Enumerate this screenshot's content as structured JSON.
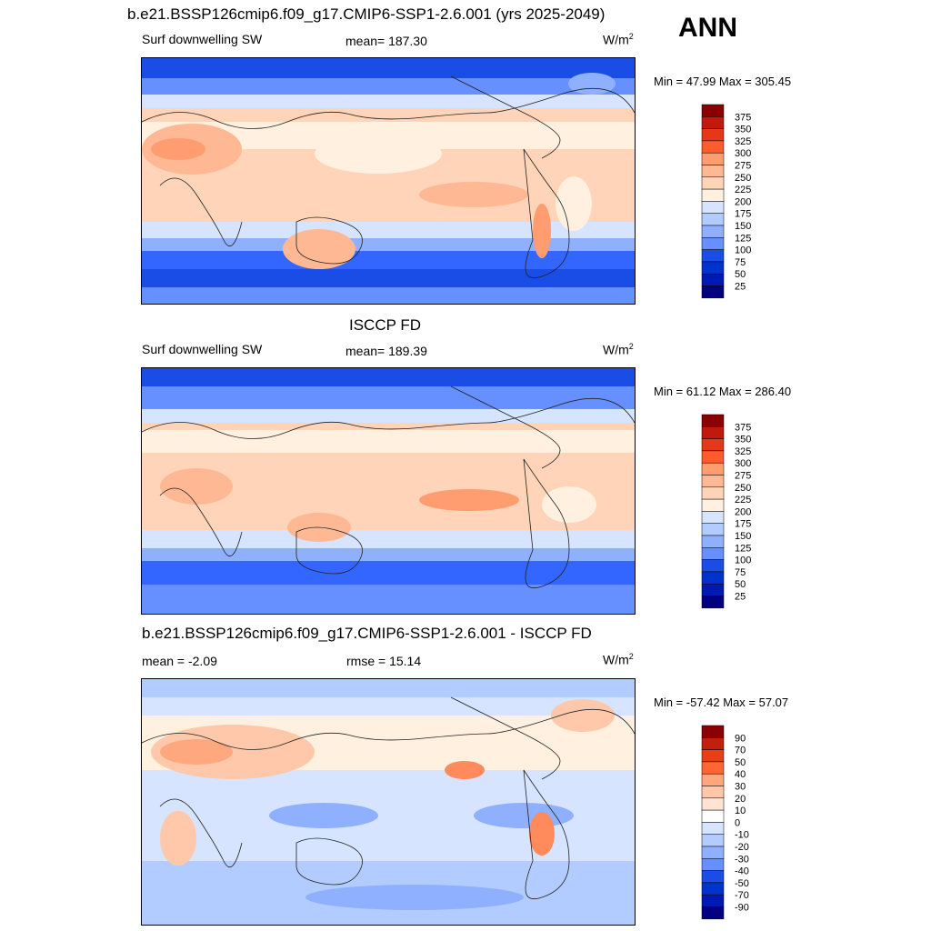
{
  "header": {
    "title": "b.e21.BSSP126cmip6.f09_g17.CMIP6-SSP1-2.6.001 (yrs 2025-2049)",
    "season": "ANN"
  },
  "colors": {
    "abs_scale": [
      "#000080",
      "#0019b3",
      "#0033cc",
      "#1a4ce6",
      "#3366ff",
      "#6690ff",
      "#8fb0ff",
      "#b3ccff",
      "#d6e4ff",
      "#fff0e0",
      "#ffd4b8",
      "#ffb894",
      "#ff9c70",
      "#ff7f4c",
      "#ff5c2e",
      "#e63819",
      "#c01a0d",
      "#8b0000"
    ],
    "diff_scale": [
      "#000080",
      "#0019b3",
      "#0033cc",
      "#1a4ce6",
      "#3366ff",
      "#6690ff",
      "#8fb0ff",
      "#b3ccff",
      "#d6e4ff",
      "#ffffff",
      "#ffe4d4",
      "#ffc8aa",
      "#ffa880",
      "#ff8a5c",
      "#ff6633",
      "#e64019",
      "#c0200d",
      "#8b0000"
    ]
  },
  "panels": [
    {
      "left_label": "Surf downwelling SW",
      "center_label": "mean= 187.30",
      "units": "W/m",
      "units_sup": "2",
      "minmax": "Min =  47.99 Max = 305.45"
    },
    {
      "title": "ISCCP FD",
      "left_label": "Surf downwelling SW",
      "center_label": "mean= 189.39",
      "units": "W/m",
      "units_sup": "2",
      "minmax": "Min =  61.12 Max = 286.40"
    },
    {
      "title": "b.e21.BSSP126cmip6.f09_g17.CMIP6-SSP1-2.6.001 - ISCCP FD",
      "left_label": "mean =  -2.09",
      "center_label": "rmse =  15.14",
      "units": "W/m",
      "units_sup": "2",
      "minmax": "Min = -57.42 Max =  57.07"
    }
  ],
  "chart_data": [
    {
      "type": "heatmap",
      "title": "b.e21.BSSP126cmip6.f09_g17.CMIP6-SSP1-2.6.001 (yrs 2025-2049)",
      "variable": "Surf downwelling SW",
      "units": "W/m2",
      "mean": 187.3,
      "min": 47.99,
      "max": 305.45,
      "colorbar_levels": [
        25,
        50,
        75,
        100,
        125,
        150,
        175,
        200,
        225,
        250,
        275,
        300,
        325,
        350,
        375
      ],
      "colorbar_labels": [
        "375",
        "350",
        "325",
        "300",
        "275",
        "250",
        "225",
        "200",
        "175",
        "150",
        "125",
        "100",
        "75",
        "50",
        "25"
      ]
    },
    {
      "type": "heatmap",
      "title": "ISCCP FD",
      "variable": "Surf downwelling SW",
      "units": "W/m2",
      "mean": 189.39,
      "min": 61.12,
      "max": 286.4,
      "colorbar_levels": [
        25,
        50,
        75,
        100,
        125,
        150,
        175,
        200,
        225,
        250,
        275,
        300,
        325,
        350,
        375
      ],
      "colorbar_labels": [
        "375",
        "350",
        "325",
        "300",
        "275",
        "250",
        "225",
        "200",
        "175",
        "150",
        "125",
        "100",
        "75",
        "50",
        "25"
      ]
    },
    {
      "type": "heatmap",
      "title": "b.e21.BSSP126cmip6.f09_g17.CMIP6-SSP1-2.6.001 - ISCCP FD",
      "units": "W/m2",
      "mean": -2.09,
      "rmse": 15.14,
      "min": -57.42,
      "max": 57.07,
      "colorbar_levels": [
        -90,
        -70,
        -50,
        -40,
        -30,
        -20,
        -10,
        0,
        10,
        20,
        30,
        40,
        50,
        70,
        90
      ],
      "colorbar_labels": [
        "90",
        "70",
        "50",
        "40",
        "30",
        "20",
        "10",
        "0",
        "-10",
        "-20",
        "-30",
        "-40",
        "-50",
        "-70",
        "-90"
      ]
    }
  ]
}
